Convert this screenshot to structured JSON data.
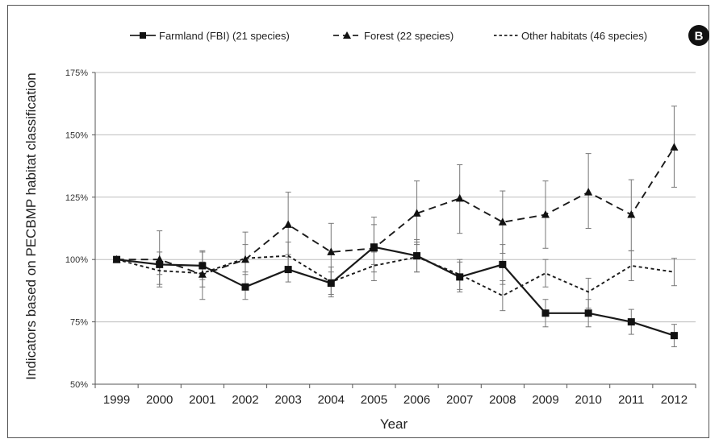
{
  "panel_label": "B",
  "chart_data": {
    "type": "line",
    "title": "",
    "xlabel": "Year",
    "ylabel": "Indicators based on PECBMP habitat classification",
    "x": [
      "1999",
      "2000",
      "2001",
      "2002",
      "2003",
      "2004",
      "2005",
      "2006",
      "2007",
      "2008",
      "2009",
      "2010",
      "2011",
      "2012"
    ],
    "yticks": [
      "50%",
      "75%",
      "100%",
      "125%",
      "150%",
      "175%"
    ],
    "ylim": [
      50,
      175
    ],
    "grid": true,
    "legend_position": "top",
    "series": [
      {
        "name": "Farmland (FBI) (21 species)",
        "style": "solid",
        "marker": "square",
        "values": [
          100,
          98,
          97.5,
          89,
          96,
          90.5,
          105,
          101.5,
          93,
          98,
          78.5,
          78.5,
          75,
          69.5
        ],
        "err_low": [
          100,
          94,
          92,
          84,
          91,
          86,
          98,
          95,
          87,
          90,
          73,
          73,
          70,
          65
        ],
        "err_high": [
          100,
          103,
          103,
          94,
          102,
          95,
          117,
          108,
          99,
          106,
          84,
          84,
          80,
          74
        ]
      },
      {
        "name": "Forest (22 species)",
        "style": "long-dash",
        "marker": "triangle",
        "values": [
          100,
          100,
          94,
          100,
          114,
          103,
          104.5,
          118.5,
          124.5,
          115,
          118,
          127,
          118,
          145
        ],
        "err_low": [
          100,
          90,
          84,
          89,
          101,
          92,
          95,
          106,
          110.5,
          102.5,
          104.5,
          112.5,
          103.5,
          129
        ],
        "err_high": [
          100,
          111.5,
          103.5,
          111,
          127,
          114.5,
          114,
          131.5,
          138,
          127.5,
          131.5,
          142.5,
          132,
          161.5
        ]
      },
      {
        "name": "Other habitats (46 species)",
        "style": "short-dash",
        "marker": "none",
        "values": [
          100,
          95.5,
          94.5,
          100.5,
          101.5,
          91,
          97.5,
          101,
          94,
          85.5,
          94.5,
          87,
          97.5,
          95
        ],
        "err_low": [
          100,
          89,
          89,
          95,
          95.5,
          85,
          91.5,
          95,
          88,
          79.5,
          89,
          80.5,
          91.5,
          89.5
        ],
        "err_high": [
          100,
          99,
          99,
          106,
          107,
          97,
          103,
          107,
          100,
          91.5,
          100,
          92.5,
          103.5,
          100.5
        ]
      }
    ]
  }
}
